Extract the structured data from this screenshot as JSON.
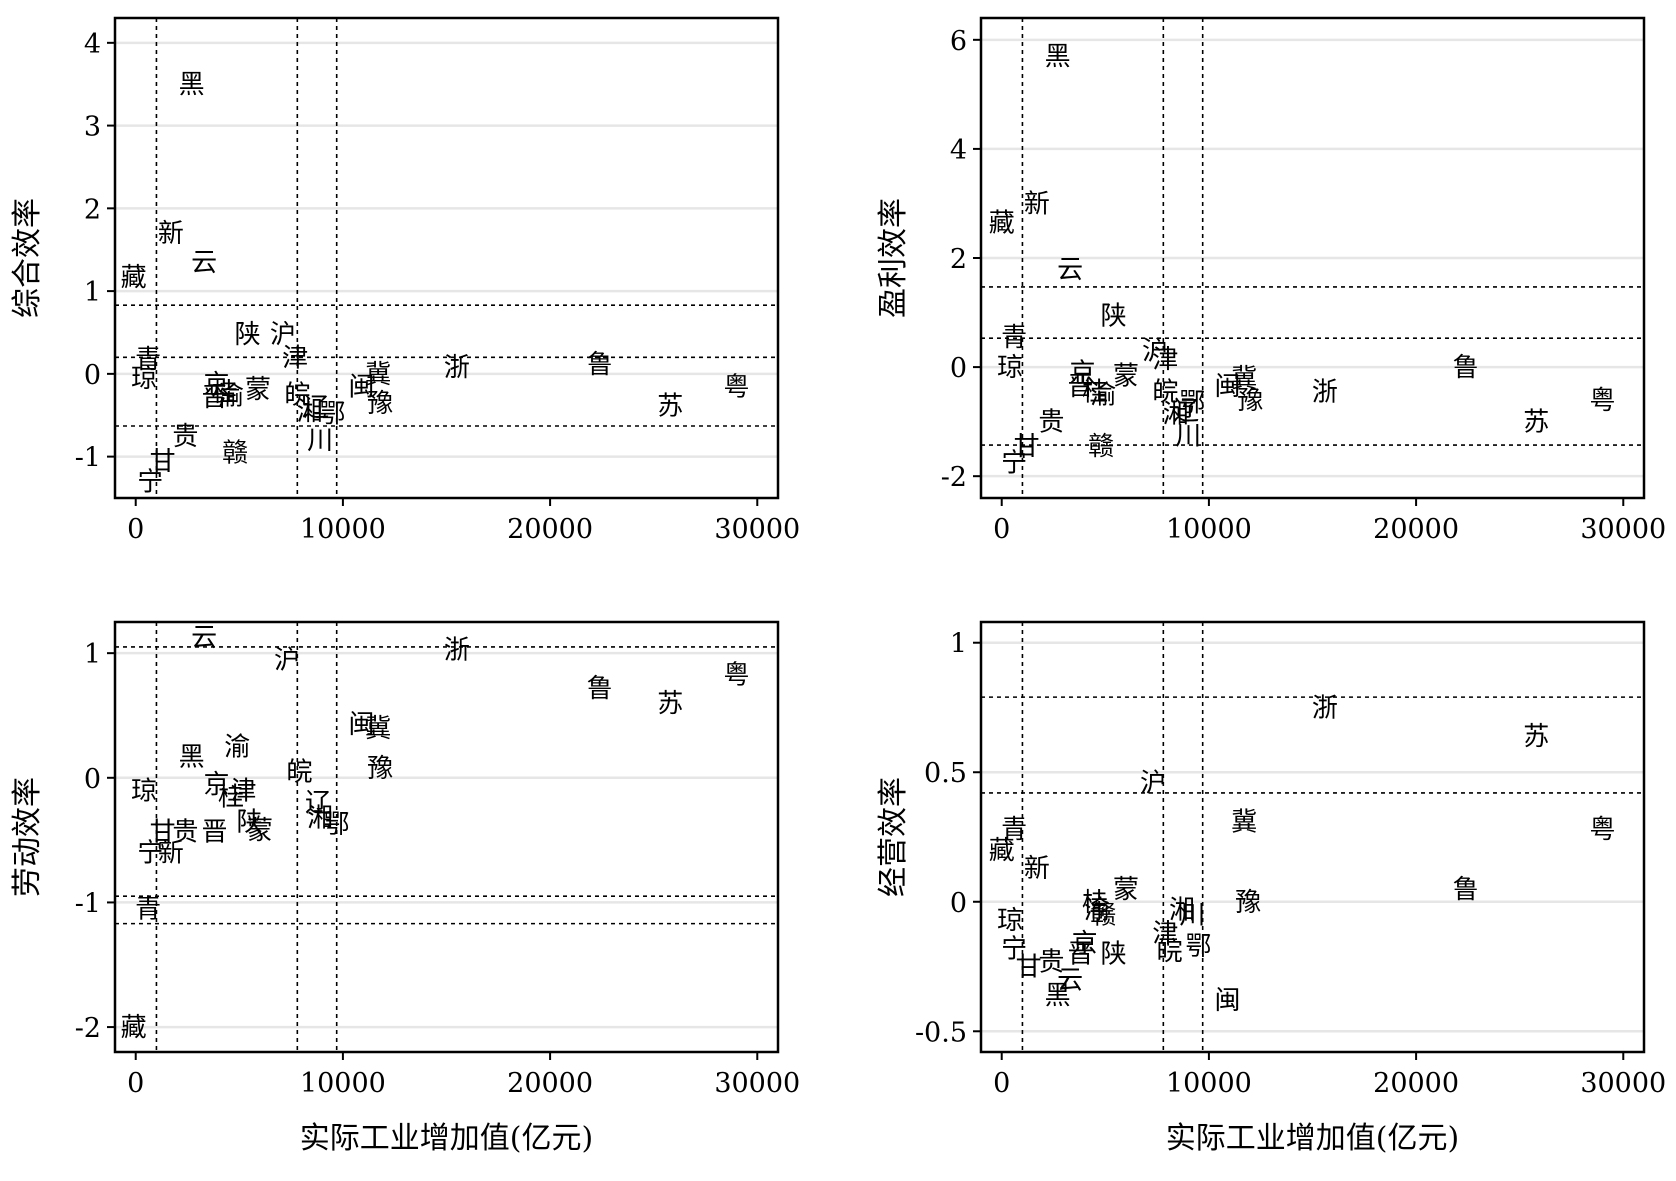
{
  "chart_data": [
    {
      "type": "scatter",
      "ylabel": "综合效率",
      "xlabel": "",
      "xlim": [
        -1000,
        31000
      ],
      "ylim": [
        -1.5,
        4.3
      ],
      "xticks": [
        0,
        10000,
        20000,
        30000
      ],
      "xtick_labels": [
        "0",
        "10000",
        "20000",
        "30000"
      ],
      "yticks": [
        -1,
        0,
        1,
        2,
        3,
        4
      ],
      "ytick_labels": [
        "-1",
        "0",
        "1",
        "2",
        "3",
        "4"
      ],
      "grid": true,
      "vlines": [
        1000,
        7800,
        9700
      ],
      "hlines": [
        0.83,
        0.2,
        -0.63
      ],
      "points": [
        {
          "label": "黑",
          "x": 2700,
          "y": 3.5
        },
        {
          "label": "新",
          "x": 1700,
          "y": 1.7
        },
        {
          "label": "云",
          "x": 3300,
          "y": 1.35
        },
        {
          "label": "藏",
          "x": -100,
          "y": 1.17
        },
        {
          "label": "陕",
          "x": 5400,
          "y": 0.48
        },
        {
          "label": "沪",
          "x": 7100,
          "y": 0.48
        },
        {
          "label": "津",
          "x": 7700,
          "y": 0.2
        },
        {
          "label": "青",
          "x": 600,
          "y": 0.18
        },
        {
          "label": "琼",
          "x": 400,
          "y": -0.05
        },
        {
          "label": "京",
          "x": 3900,
          "y": -0.12
        },
        {
          "label": "晋",
          "x": 3800,
          "y": -0.28
        },
        {
          "label": "桂",
          "x": 4300,
          "y": -0.22
        },
        {
          "label": "渝",
          "x": 4600,
          "y": -0.26
        },
        {
          "label": "蒙",
          "x": 5900,
          "y": -0.18
        },
        {
          "label": "皖",
          "x": 7800,
          "y": -0.25
        },
        {
          "label": "湘",
          "x": 8400,
          "y": -0.45
        },
        {
          "label": "辽",
          "x": 8700,
          "y": -0.4
        },
        {
          "label": "鄂",
          "x": 9500,
          "y": -0.48
        },
        {
          "label": "川",
          "x": 8900,
          "y": -0.8
        },
        {
          "label": "闽",
          "x": 10900,
          "y": -0.15
        },
        {
          "label": "冀",
          "x": 11700,
          "y": 0.0
        },
        {
          "label": "豫",
          "x": 11800,
          "y": -0.35
        },
        {
          "label": "浙",
          "x": 15500,
          "y": 0.08
        },
        {
          "label": "鲁",
          "x": 22400,
          "y": 0.12
        },
        {
          "label": "苏",
          "x": 25800,
          "y": -0.38
        },
        {
          "label": "粤",
          "x": 29000,
          "y": -0.15
        },
        {
          "label": "贵",
          "x": 2400,
          "y": -0.75
        },
        {
          "label": "赣",
          "x": 4800,
          "y": -0.95
        },
        {
          "label": "甘",
          "x": 1300,
          "y": -1.05
        },
        {
          "label": "宁",
          "x": 700,
          "y": -1.3
        }
      ]
    },
    {
      "type": "scatter",
      "ylabel": "盈利效率",
      "xlabel": "",
      "xlim": [
        -1000,
        31000
      ],
      "ylim": [
        -2.4,
        6.4
      ],
      "xticks": [
        0,
        10000,
        20000,
        30000
      ],
      "xtick_labels": [
        "0",
        "10000",
        "20000",
        "30000"
      ],
      "yticks": [
        -2,
        0,
        2,
        4,
        6
      ],
      "ytick_labels": [
        "-2",
        "0",
        "2",
        "4",
        "6"
      ],
      "grid": true,
      "vlines": [
        1000,
        7800,
        9700
      ],
      "hlines": [
        1.47,
        0.53,
        -1.43
      ],
      "points": [
        {
          "label": "黑",
          "x": 2700,
          "y": 5.7
        },
        {
          "label": "新",
          "x": 1700,
          "y": 3.0
        },
        {
          "label": "藏",
          "x": 0,
          "y": 2.65
        },
        {
          "label": "云",
          "x": 3300,
          "y": 1.8
        },
        {
          "label": "陕",
          "x": 5400,
          "y": 0.95
        },
        {
          "label": "青",
          "x": 600,
          "y": 0.55
        },
        {
          "label": "沪",
          "x": 7400,
          "y": 0.3
        },
        {
          "label": "津",
          "x": 7900,
          "y": 0.15
        },
        {
          "label": "琼",
          "x": 400,
          "y": 0.0
        },
        {
          "label": "京",
          "x": 3900,
          "y": -0.1
        },
        {
          "label": "晋",
          "x": 3800,
          "y": -0.35
        },
        {
          "label": "桂",
          "x": 4500,
          "y": -0.45
        },
        {
          "label": "渝",
          "x": 4900,
          "y": -0.5
        },
        {
          "label": "蒙",
          "x": 6000,
          "y": -0.15
        },
        {
          "label": "皖",
          "x": 7900,
          "y": -0.45
        },
        {
          "label": "鄂",
          "x": 9200,
          "y": -0.65
        },
        {
          "label": "湘",
          "x": 8400,
          "y": -0.85
        },
        {
          "label": "辽",
          "x": 8900,
          "y": -0.8
        },
        {
          "label": "川",
          "x": 9000,
          "y": -1.25
        },
        {
          "label": "闽",
          "x": 10900,
          "y": -0.35
        },
        {
          "label": "冀",
          "x": 11700,
          "y": -0.2
        },
        {
          "label": "豫",
          "x": 12000,
          "y": -0.6
        },
        {
          "label": "浙",
          "x": 15600,
          "y": -0.45
        },
        {
          "label": "鲁",
          "x": 22400,
          "y": 0.0
        },
        {
          "label": "粤",
          "x": 29000,
          "y": -0.6
        },
        {
          "label": "苏",
          "x": 25800,
          "y": -1.0
        },
        {
          "label": "贵",
          "x": 2400,
          "y": -1.0
        },
        {
          "label": "赣",
          "x": 4800,
          "y": -1.45
        },
        {
          "label": "甘",
          "x": 1200,
          "y": -1.45
        },
        {
          "label": "宁",
          "x": 600,
          "y": -1.75
        }
      ]
    },
    {
      "type": "scatter",
      "ylabel": "劳动效率",
      "xlabel": "实际工业增加值(亿元)",
      "xlim": [
        -1000,
        31000
      ],
      "ylim": [
        -2.2,
        1.25
      ],
      "xticks": [
        0,
        10000,
        20000,
        30000
      ],
      "xtick_labels": [
        "0",
        "10000",
        "20000",
        "30000"
      ],
      "yticks": [
        -2,
        -1,
        0,
        1
      ],
      "ytick_labels": [
        "-2",
        "-1",
        "0",
        "1"
      ],
      "grid": true,
      "vlines": [
        1000,
        7800,
        9700
      ],
      "hlines": [
        1.05,
        -0.95,
        -1.17
      ],
      "points": [
        {
          "label": "云",
          "x": 3300,
          "y": 1.13
        },
        {
          "label": "沪",
          "x": 7300,
          "y": 0.95
        },
        {
          "label": "浙",
          "x": 15500,
          "y": 1.03
        },
        {
          "label": "粤",
          "x": 29000,
          "y": 0.83
        },
        {
          "label": "鲁",
          "x": 22400,
          "y": 0.72
        },
        {
          "label": "苏",
          "x": 25800,
          "y": 0.6
        },
        {
          "label": "闽",
          "x": 10900,
          "y": 0.43
        },
        {
          "label": "冀",
          "x": 11700,
          "y": 0.4
        },
        {
          "label": "渝",
          "x": 4900,
          "y": 0.25
        },
        {
          "label": "黑",
          "x": 2700,
          "y": 0.17
        },
        {
          "label": "豫",
          "x": 11800,
          "y": 0.08
        },
        {
          "label": "皖",
          "x": 7900,
          "y": 0.05
        },
        {
          "label": "京",
          "x": 3900,
          "y": -0.05
        },
        {
          "label": "琼",
          "x": 400,
          "y": -0.1
        },
        {
          "label": "桂",
          "x": 4600,
          "y": -0.15
        },
        {
          "label": "津",
          "x": 5200,
          "y": -0.1
        },
        {
          "label": "辽",
          "x": 8800,
          "y": -0.2
        },
        {
          "label": "湘",
          "x": 8900,
          "y": -0.32
        },
        {
          "label": "鄂",
          "x": 9700,
          "y": -0.37
        },
        {
          "label": "陕",
          "x": 5500,
          "y": -0.35
        },
        {
          "label": "蒙",
          "x": 6000,
          "y": -0.42
        },
        {
          "label": "晋",
          "x": 3800,
          "y": -0.43
        },
        {
          "label": "贵",
          "x": 2400,
          "y": -0.43
        },
        {
          "label": "甘",
          "x": 1300,
          "y": -0.43
        },
        {
          "label": "宁",
          "x": 700,
          "y": -0.6
        },
        {
          "label": "新",
          "x": 1700,
          "y": -0.6
        },
        {
          "label": "青",
          "x": 600,
          "y": -1.05
        },
        {
          "label": "藏",
          "x": -100,
          "y": -2.0
        }
      ]
    },
    {
      "type": "scatter",
      "ylabel": "经营效率",
      "xlabel": "实际工业增加值(亿元)",
      "xlim": [
        -1000,
        31000
      ],
      "ylim": [
        -0.58,
        1.08
      ],
      "xticks": [
        0,
        10000,
        20000,
        30000
      ],
      "xtick_labels": [
        "0",
        "10000",
        "20000",
        "30000"
      ],
      "yticks": [
        -0.5,
        0,
        0.5,
        1
      ],
      "ytick_labels": [
        "-0.5",
        "0",
        "0.5",
        "1"
      ],
      "grid": true,
      "vlines": [
        1000,
        7800,
        9700
      ],
      "hlines": [
        0.79,
        0.42
      ],
      "points": [
        {
          "label": "浙",
          "x": 15600,
          "y": 0.75
        },
        {
          "label": "苏",
          "x": 25800,
          "y": 0.64
        },
        {
          "label": "沪",
          "x": 7300,
          "y": 0.46
        },
        {
          "label": "冀",
          "x": 11700,
          "y": 0.31
        },
        {
          "label": "粤",
          "x": 29000,
          "y": 0.28
        },
        {
          "label": "青",
          "x": 600,
          "y": 0.28
        },
        {
          "label": "藏",
          "x": 0,
          "y": 0.2
        },
        {
          "label": "新",
          "x": 1700,
          "y": 0.13
        },
        {
          "label": "鲁",
          "x": 22400,
          "y": 0.05
        },
        {
          "label": "蒙",
          "x": 6000,
          "y": 0.05
        },
        {
          "label": "桂",
          "x": 4500,
          "y": 0.0
        },
        {
          "label": "渝",
          "x": 4600,
          "y": -0.03
        },
        {
          "label": "赣",
          "x": 4900,
          "y": -0.05
        },
        {
          "label": "豫",
          "x": 11900,
          "y": 0.0
        },
        {
          "label": "湘",
          "x": 8700,
          "y": -0.03
        },
        {
          "label": "川",
          "x": 9200,
          "y": -0.05
        },
        {
          "label": "琼",
          "x": 400,
          "y": -0.07
        },
        {
          "label": "津",
          "x": 7900,
          "y": -0.12
        },
        {
          "label": "京",
          "x": 4000,
          "y": -0.16
        },
        {
          "label": "晋",
          "x": 3800,
          "y": -0.2
        },
        {
          "label": "陕",
          "x": 5400,
          "y": -0.2
        },
        {
          "label": "皖",
          "x": 8100,
          "y": -0.19
        },
        {
          "label": "鄂",
          "x": 9500,
          "y": -0.17
        },
        {
          "label": "宁",
          "x": 600,
          "y": -0.18
        },
        {
          "label": "甘",
          "x": 1300,
          "y": -0.25
        },
        {
          "label": "贵",
          "x": 2400,
          "y": -0.23
        },
        {
          "label": "云",
          "x": 3300,
          "y": -0.3
        },
        {
          "label": "黑",
          "x": 2700,
          "y": -0.36
        },
        {
          "label": "闽",
          "x": 10900,
          "y": -0.38
        }
      ]
    }
  ]
}
